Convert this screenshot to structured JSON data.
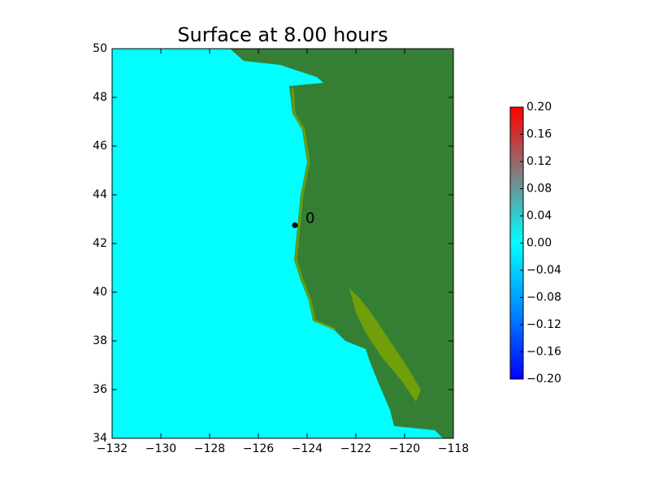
{
  "chart_data": {
    "type": "map",
    "title": "Surface at 8.00 hours",
    "xlim": [
      -132,
      -118
    ],
    "xticks": [
      {
        "value": -132,
        "label": "−132"
      },
      {
        "value": -130,
        "label": "−130"
      },
      {
        "value": -128,
        "label": "−128"
      },
      {
        "value": -126,
        "label": "−126"
      },
      {
        "value": -124,
        "label": "−124"
      },
      {
        "value": -122,
        "label": "−122"
      },
      {
        "value": -120,
        "label": "−120"
      },
      {
        "value": -118,
        "label": "−118"
      }
    ],
    "ylim": [
      34,
      50
    ],
    "yticks": [
      34,
      36,
      38,
      40,
      42,
      44,
      46,
      48,
      50
    ],
    "ocean_color": "#00ffff",
    "land_color": "#357f35",
    "points": [
      {
        "x": -124.5,
        "y": 42.75,
        "label": "0"
      }
    ],
    "colorbar": {
      "lim": [
        -0.2,
        0.2
      ],
      "colors": [
        "#0000ff",
        "#0088ff",
        "#00ffff",
        "#808080",
        "#ff0000"
      ],
      "ticks": [
        {
          "value": 0.2,
          "label": "0.20"
        },
        {
          "value": 0.16,
          "label": "0.16"
        },
        {
          "value": 0.12,
          "label": "0.12"
        },
        {
          "value": 0.08,
          "label": "0.08"
        },
        {
          "value": 0.04,
          "label": "0.04"
        },
        {
          "value": 0,
          "label": "0.00"
        },
        {
          "value": -0.04,
          "label": "−0.04"
        },
        {
          "value": -0.08,
          "label": "−0.08"
        },
        {
          "value": -0.12,
          "label": "−0.12"
        },
        {
          "value": -0.16,
          "label": "−0.16"
        },
        {
          "value": -0.2,
          "label": "−0.20"
        }
      ]
    }
  }
}
